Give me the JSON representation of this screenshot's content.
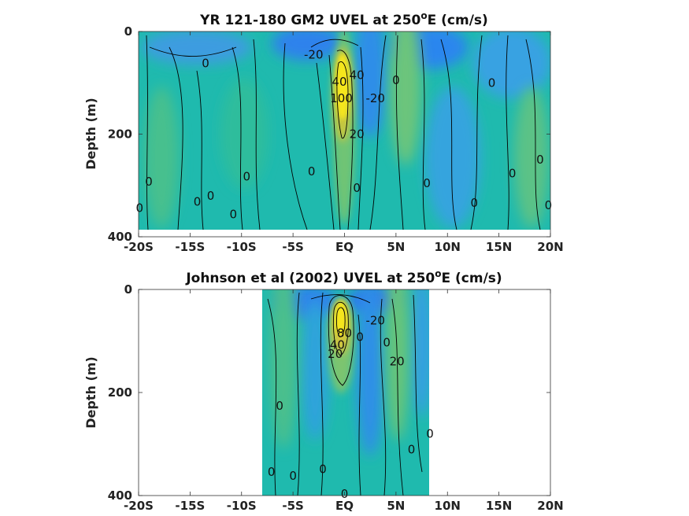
{
  "chart_data": [
    {
      "type": "heatmap",
      "title_main": "YR 121-180 GM2 UVEL at 250",
      "title_sup": "o",
      "title_tail": "E (cm/s)",
      "ylabel": "Depth (m)",
      "xlabel": "",
      "x_tick_labels": [
        "-20S",
        "-15S",
        "-10S",
        "-5S",
        "EQ",
        "5N",
        "10N",
        "15N",
        "20N"
      ],
      "x_tick_values": [
        -20,
        -15,
        -10,
        -5,
        0,
        5,
        10,
        15,
        20
      ],
      "xlim": [
        -20,
        20
      ],
      "y_tick_labels": [
        "0",
        "200",
        "400"
      ],
      "y_tick_values": [
        0,
        200,
        400
      ],
      "ylim": [
        0,
        400
      ],
      "y_reversed": true,
      "data_extent_x": [
        -20,
        20
      ],
      "data_extent_depth": [
        0,
        385
      ],
      "contour_labels": [
        {
          "text": "0",
          "lat": -13.5,
          "depth": 62
        },
        {
          "text": "-20",
          "lat": -3.0,
          "depth": 45
        },
        {
          "text": "40",
          "lat": -0.5,
          "depth": 98
        },
        {
          "text": "100",
          "lat": -0.3,
          "depth": 130
        },
        {
          "text": "40",
          "lat": 1.2,
          "depth": 85
        },
        {
          "text": "-20",
          "lat": 3.0,
          "depth": 130
        },
        {
          "text": "0",
          "lat": 5.0,
          "depth": 95
        },
        {
          "text": "20",
          "lat": 1.2,
          "depth": 200
        },
        {
          "text": "0",
          "lat": 14.3,
          "depth": 100
        },
        {
          "text": "0",
          "lat": -3.2,
          "depth": 273
        },
        {
          "text": "0",
          "lat": -9.5,
          "depth": 283
        },
        {
          "text": "0",
          "lat": -19.0,
          "depth": 293
        },
        {
          "text": "0",
          "lat": -13.0,
          "depth": 320
        },
        {
          "text": "0",
          "lat": -14.3,
          "depth": 332
        },
        {
          "text": "0",
          "lat": -10.8,
          "depth": 356
        },
        {
          "text": "0",
          "lat": -19.9,
          "depth": 344
        },
        {
          "text": "0",
          "lat": 1.2,
          "depth": 305
        },
        {
          "text": "0",
          "lat": 8.0,
          "depth": 296
        },
        {
          "text": "0",
          "lat": 12.6,
          "depth": 334
        },
        {
          "text": "0",
          "lat": 16.3,
          "depth": 277
        },
        {
          "text": "0",
          "lat": 19.0,
          "depth": 250
        },
        {
          "text": "0",
          "lat": 19.8,
          "depth": 339
        }
      ]
    },
    {
      "type": "heatmap",
      "title_main": "Johnson et al (2002) UVEL at 250",
      "title_sup": "o",
      "title_tail": "E (cm/s)",
      "ylabel": "Depth (m)",
      "xlabel": "",
      "x_tick_labels": [
        "-20S",
        "-15S",
        "-10S",
        "-5S",
        "EQ",
        "5N",
        "10N",
        "15N",
        "20N"
      ],
      "x_tick_values": [
        -20,
        -15,
        -10,
        -5,
        0,
        5,
        10,
        15,
        20
      ],
      "xlim": [
        -20,
        20
      ],
      "y_tick_labels": [
        "0",
        "200",
        "400"
      ],
      "y_tick_values": [
        0,
        200,
        400
      ],
      "ylim": [
        0,
        400
      ],
      "y_reversed": true,
      "data_extent_x": [
        -8,
        8.3
      ],
      "data_extent_depth": [
        0,
        400
      ],
      "contour_labels": [
        {
          "text": "-20",
          "lat": 3.0,
          "depth": 60
        },
        {
          "text": "80",
          "lat": 0.0,
          "depth": 85
        },
        {
          "text": "40",
          "lat": -0.7,
          "depth": 108
        },
        {
          "text": "20",
          "lat": -0.9,
          "depth": 125
        },
        {
          "text": "0",
          "lat": 1.5,
          "depth": 92
        },
        {
          "text": "0",
          "lat": 4.1,
          "depth": 103
        },
        {
          "text": "20",
          "lat": 5.1,
          "depth": 140
        },
        {
          "text": "0",
          "lat": -6.3,
          "depth": 226
        },
        {
          "text": "0",
          "lat": 8.3,
          "depth": 280
        },
        {
          "text": "0",
          "lat": 6.5,
          "depth": 311
        },
        {
          "text": "0",
          "lat": -7.1,
          "depth": 354
        },
        {
          "text": "0",
          "lat": -5.0,
          "depth": 362
        },
        {
          "text": "0",
          "lat": -2.1,
          "depth": 349
        },
        {
          "text": "0",
          "lat": 0.0,
          "depth": 397
        }
      ]
    }
  ],
  "colors": {
    "background_field": "#1fbaae",
    "eastward_max": "#f6e61f",
    "westward_min": "#2e78ee",
    "contour_line": "#000000"
  }
}
